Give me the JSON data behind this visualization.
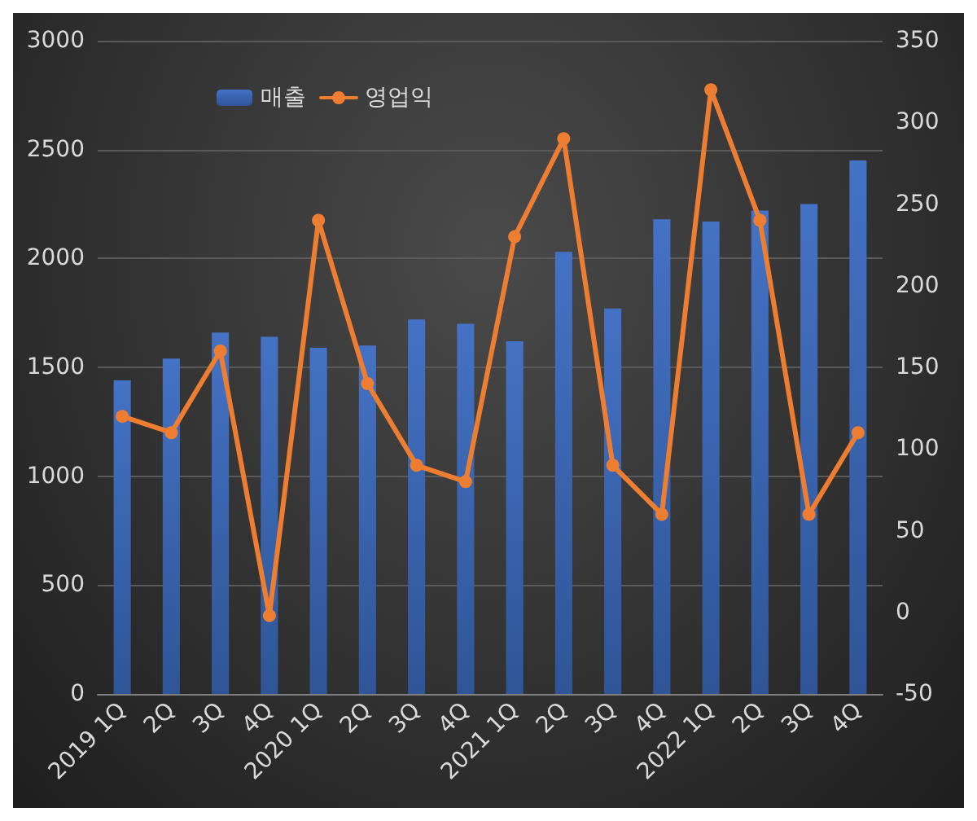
{
  "chart_data": {
    "type": "bar",
    "categories": [
      "2019 1Q",
      "2Q",
      "3Q",
      "4Q",
      "2020 1Q",
      "2Q",
      "3Q",
      "4Q",
      "2021 1Q",
      "2Q",
      "3Q",
      "4Q",
      "2022 1Q",
      "2Q",
      "3Q",
      "4Q"
    ],
    "series": [
      {
        "name": "매출",
        "color": "#4472c4",
        "values": [
          1440,
          1540,
          1660,
          1640,
          1590,
          1600,
          1720,
          1700,
          1620,
          2030,
          1770,
          2180,
          2170,
          2220,
          2250,
          2450
        ]
      },
      {
        "name": "영업익",
        "type": "line",
        "axis": "y2",
        "color": "#ed7d31",
        "values": [
          120,
          110,
          160,
          -2,
          240,
          140,
          90,
          80,
          230,
          290,
          90,
          60,
          320,
          240,
          60,
          110
        ]
      }
    ],
    "ylim": [
      0,
      3000
    ],
    "yticks": [
      0,
      500,
      1000,
      1500,
      2000,
      2500,
      3000
    ],
    "y2lim": [
      -50,
      350
    ],
    "y2ticks": [
      -50,
      0,
      50,
      100,
      150,
      200,
      250,
      300,
      350
    ],
    "grid": "y",
    "legend": "top left",
    "marker": "circle",
    "line_style": "solid"
  }
}
